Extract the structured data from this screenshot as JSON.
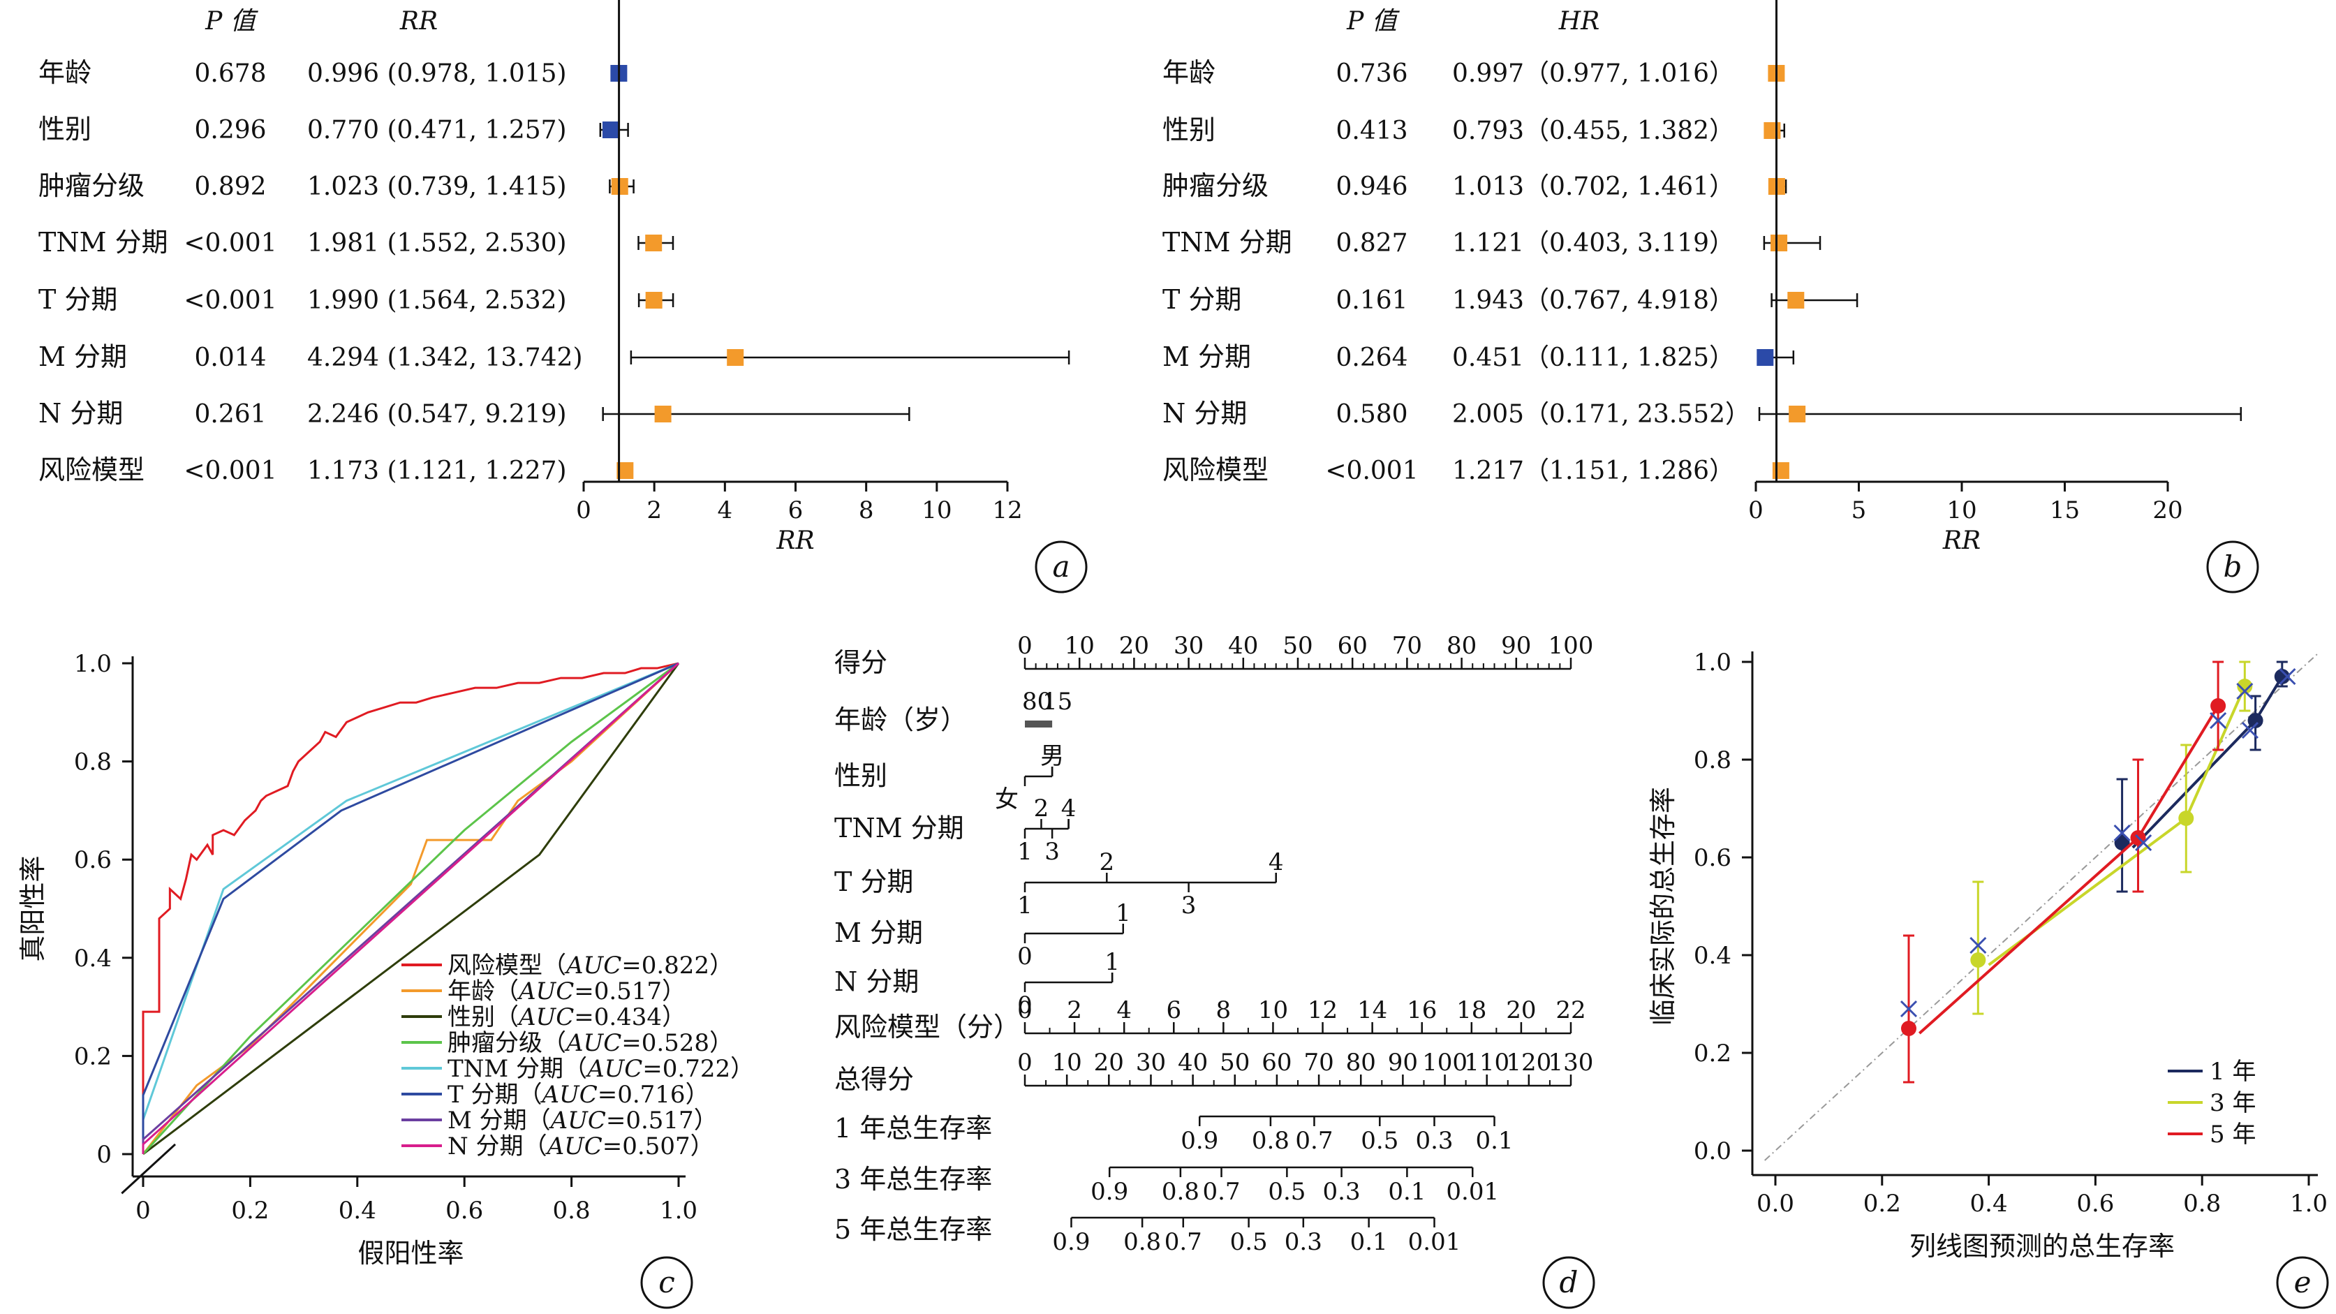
{
  "colors": {
    "blue": "#2b4aa8",
    "orange": "#f39a2b",
    "red": "#e01b22",
    "yellow": "#c8d62a",
    "navy": "#1c2a5e",
    "grey": "#555555"
  },
  "chart_data": [
    {
      "id": "a",
      "type": "forest",
      "panel_label": "a",
      "col_p": "P 值",
      "col_est": "RR",
      "xlabel": "RR",
      "xlim": [
        0,
        12
      ],
      "xticks": [
        "0",
        "2",
        "4",
        "6",
        "8",
        "10",
        "12"
      ],
      "rows": [
        {
          "label": "年龄",
          "p": "0.678",
          "est_text": "0.996 (0.978, 1.015)",
          "est": 0.996,
          "lo": 0.978,
          "hi": 1.015,
          "color": "blue"
        },
        {
          "label": "性别",
          "p": "0.296",
          "est_text": "0.770 (0.471, 1.257)",
          "est": 0.77,
          "lo": 0.471,
          "hi": 1.257,
          "color": "blue"
        },
        {
          "label": "肿瘤分级",
          "p": "0.892",
          "est_text": "1.023 (0.739, 1.415)",
          "est": 1.023,
          "lo": 0.739,
          "hi": 1.415,
          "color": "orange"
        },
        {
          "label": "TNM 分期",
          "p": "<0.001",
          "est_text": "1.981 (1.552, 2.530)",
          "est": 1.981,
          "lo": 1.552,
          "hi": 2.53,
          "color": "orange"
        },
        {
          "label": "T 分期",
          "p": "<0.001",
          "est_text": "1.990 (1.564, 2.532)",
          "est": 1.99,
          "lo": 1.564,
          "hi": 2.532,
          "color": "orange"
        },
        {
          "label": "M 分期",
          "p": "0.014",
          "est_text": "4.294 (1.342, 13.742)",
          "est": 4.294,
          "lo": 1.342,
          "hi": 13.742,
          "color": "orange"
        },
        {
          "label": "N 分期",
          "p": "0.261",
          "est_text": "2.246 (0.547, 9.219)",
          "est": 2.246,
          "lo": 0.547,
          "hi": 9.219,
          "color": "orange"
        },
        {
          "label": "风险模型",
          "p": "<0.001",
          "est_text": "1.173 (1.121, 1.227)",
          "est": 1.173,
          "lo": 1.121,
          "hi": 1.227,
          "color": "orange"
        }
      ]
    },
    {
      "id": "b",
      "type": "forest",
      "panel_label": "b",
      "col_p": "P 值",
      "col_est": "HR",
      "xlabel": "RR",
      "xlim": [
        0,
        20
      ],
      "xticks": [
        "0",
        "5",
        "10",
        "15",
        "20"
      ],
      "rows": [
        {
          "label": "年龄",
          "p": "0.736",
          "est_text": "0.997（0.977, 1.016）",
          "est": 0.997,
          "lo": 0.977,
          "hi": 1.016,
          "color": "orange"
        },
        {
          "label": "性别",
          "p": "0.413",
          "est_text": "0.793（0.455, 1.382）",
          "est": 0.793,
          "lo": 0.455,
          "hi": 1.382,
          "color": "orange"
        },
        {
          "label": "肿瘤分级",
          "p": "0.946",
          "est_text": "1.013（0.702, 1.461）",
          "est": 1.013,
          "lo": 0.702,
          "hi": 1.461,
          "color": "orange"
        },
        {
          "label": "TNM 分期",
          "p": "0.827",
          "est_text": "1.121（0.403, 3.119）",
          "est": 1.121,
          "lo": 0.403,
          "hi": 3.119,
          "color": "orange"
        },
        {
          "label": "T 分期",
          "p": "0.161",
          "est_text": "1.943（0.767, 4.918）",
          "est": 1.943,
          "lo": 0.767,
          "hi": 4.918,
          "color": "orange"
        },
        {
          "label": "M 分期",
          "p": "0.264",
          "est_text": "0.451（0.111, 1.825）",
          "est": 0.451,
          "lo": 0.111,
          "hi": 1.825,
          "color": "blue"
        },
        {
          "label": "N 分期",
          "p": "0.580",
          "est_text": "2.005（0.171, 23.552）",
          "est": 2.005,
          "lo": 0.171,
          "hi": 23.552,
          "color": "orange"
        },
        {
          "label": "风险模型",
          "p": "<0.001",
          "est_text": "1.217（1.151, 1.286）",
          "est": 1.217,
          "lo": 1.151,
          "hi": 1.286,
          "color": "orange"
        }
      ]
    },
    {
      "id": "c",
      "type": "line",
      "panel_label": "c",
      "xlabel": "假阳性率",
      "ylabel": "真阳性率",
      "xlim": [
        0,
        1
      ],
      "ylim": [
        0,
        1
      ],
      "xticks": [
        "0",
        "0.2",
        "0.4",
        "0.6",
        "0.8",
        "1.0"
      ],
      "yticks": [
        "0",
        "0.2",
        "0.4",
        "0.6",
        "0.8",
        "1.0"
      ],
      "series": [
        {
          "name": "风险模型",
          "auc": "=0.822",
          "color": "#e01b22",
          "points": [
            [
              0,
              0
            ],
            [
              0,
              0.1
            ],
            [
              0,
              0.29
            ],
            [
              0.03,
              0.29
            ],
            [
              0.03,
              0.48
            ],
            [
              0.05,
              0.5
            ],
            [
              0.05,
              0.54
            ],
            [
              0.07,
              0.52
            ],
            [
              0.08,
              0.56
            ],
            [
              0.09,
              0.61
            ],
            [
              0.1,
              0.6
            ],
            [
              0.12,
              0.63
            ],
            [
              0.13,
              0.61
            ],
            [
              0.13,
              0.65
            ],
            [
              0.15,
              0.66
            ],
            [
              0.17,
              0.65
            ],
            [
              0.19,
              0.68
            ],
            [
              0.2,
              0.69
            ],
            [
              0.21,
              0.7
            ],
            [
              0.22,
              0.72
            ],
            [
              0.23,
              0.73
            ],
            [
              0.25,
              0.74
            ],
            [
              0.27,
              0.75
            ],
            [
              0.28,
              0.78
            ],
            [
              0.29,
              0.8
            ],
            [
              0.31,
              0.82
            ],
            [
              0.33,
              0.84
            ],
            [
              0.34,
              0.86
            ],
            [
              0.36,
              0.85
            ],
            [
              0.38,
              0.88
            ],
            [
              0.4,
              0.89
            ],
            [
              0.42,
              0.9
            ],
            [
              0.45,
              0.91
            ],
            [
              0.48,
              0.92
            ],
            [
              0.51,
              0.92
            ],
            [
              0.54,
              0.93
            ],
            [
              0.58,
              0.94
            ],
            [
              0.62,
              0.95
            ],
            [
              0.66,
              0.95
            ],
            [
              0.7,
              0.96
            ],
            [
              0.74,
              0.96
            ],
            [
              0.78,
              0.97
            ],
            [
              0.82,
              0.97
            ],
            [
              0.86,
              0.98
            ],
            [
              0.9,
              0.98
            ],
            [
              0.93,
              0.99
            ],
            [
              0.96,
              0.99
            ],
            [
              1,
              1
            ]
          ]
        },
        {
          "name": "年龄",
          "auc": "=0.517",
          "color": "#f39a2b",
          "points": [
            [
              0,
              0
            ],
            [
              0.1,
              0.14
            ],
            [
              0.2,
              0.22
            ],
            [
              0.3,
              0.33
            ],
            [
              0.4,
              0.44
            ],
            [
              0.5,
              0.55
            ],
            [
              0.53,
              0.64
            ],
            [
              0.65,
              0.64
            ],
            [
              0.7,
              0.72
            ],
            [
              0.8,
              0.8
            ],
            [
              0.9,
              0.9
            ],
            [
              1,
              1
            ]
          ]
        },
        {
          "name": "性别",
          "auc": "=0.434",
          "color": "#2e3d0a",
          "points": [
            [
              0,
              0
            ],
            [
              0.74,
              0.61
            ],
            [
              1,
              1
            ]
          ]
        },
        {
          "name": "肿瘤分级",
          "auc": "=0.528",
          "color": "#5cc44a",
          "points": [
            [
              0,
              0
            ],
            [
              0.2,
              0.24
            ],
            [
              0.4,
              0.45
            ],
            [
              0.6,
              0.66
            ],
            [
              0.8,
              0.84
            ],
            [
              1,
              1
            ]
          ]
        },
        {
          "name": "TNM 分期",
          "auc": "=0.722",
          "color": "#5fc8d8",
          "points": [
            [
              0,
              0
            ],
            [
              0,
              0.07
            ],
            [
              0.15,
              0.54
            ],
            [
              0.38,
              0.72
            ],
            [
              1,
              1
            ]
          ]
        },
        {
          "name": "T 分期",
          "auc": "=0.716",
          "color": "#2e4aa0",
          "points": [
            [
              0,
              0
            ],
            [
              0,
              0.12
            ],
            [
              0.15,
              0.52
            ],
            [
              0.37,
              0.7
            ],
            [
              1,
              1
            ]
          ]
        },
        {
          "name": "M 分期",
          "auc": "=0.517",
          "color": "#6b3fa0",
          "points": [
            [
              0,
              0
            ],
            [
              0,
              0.03
            ],
            [
              1,
              1
            ]
          ]
        },
        {
          "name": "N 分期",
          "auc": "=0.507",
          "color": "#d81e8c",
          "points": [
            [
              0,
              0
            ],
            [
              0,
              0.02
            ],
            [
              1,
              1
            ]
          ]
        }
      ]
    },
    {
      "id": "d",
      "type": "nomogram",
      "panel_label": "d",
      "rows": [
        {
          "label": "得分",
          "kind": "axis",
          "domain": [
            0,
            100
          ],
          "ticks": [
            "0",
            "10",
            "20",
            "30",
            "40",
            "50",
            "60",
            "70",
            "80",
            "90",
            "100"
          ],
          "minor": true
        },
        {
          "label": "年龄（岁）",
          "kind": "age",
          "top": [
            "80",
            "15"
          ]
        },
        {
          "label": "性别",
          "kind": "cat",
          "top": [
            {
              "t": "男",
              "v": 5
            }
          ],
          "bottom": [
            {
              "t": "女",
              "v": 0
            }
          ],
          "end": 5
        },
        {
          "label": "TNM 分期",
          "kind": "cat",
          "top": [
            {
              "t": "2",
              "v": 3
            },
            {
              "t": "4",
              "v": 8
            }
          ],
          "bottom": [
            {
              "t": "1",
              "v": 0
            },
            {
              "t": "3",
              "v": 5
            }
          ],
          "end": 8
        },
        {
          "label": "T 分期",
          "kind": "cat",
          "top": [
            {
              "t": "2",
              "v": 15
            },
            {
              "t": "4",
              "v": 46
            }
          ],
          "bottom": [
            {
              "t": "1",
              "v": 0
            },
            {
              "t": "3",
              "v": 30
            }
          ],
          "end": 46
        },
        {
          "label": "M 分期",
          "kind": "cat",
          "top": [
            {
              "t": "1",
              "v": 18
            }
          ],
          "bottom": [
            {
              "t": "0",
              "v": 0
            }
          ],
          "end": 18
        },
        {
          "label": "N 分期",
          "kind": "cat",
          "top": [
            {
              "t": "1",
              "v": 16
            }
          ],
          "bottom": [
            {
              "t": "0",
              "v": 0
            }
          ],
          "end": 16
        },
        {
          "label": "风险模型（分）",
          "kind": "axis",
          "domain": [
            0,
            22
          ],
          "ticks": [
            "0",
            "2",
            "4",
            "6",
            "8",
            "10",
            "12",
            "14",
            "16",
            "18",
            "20",
            "22"
          ],
          "minor": true
        },
        {
          "label": "总得分",
          "kind": "axis",
          "domain": [
            0,
            130
          ],
          "ticks": [
            "0",
            "10",
            "20",
            "30",
            "40",
            "50",
            "60",
            "70",
            "80",
            "90",
            "100",
            "110",
            "120",
            "130"
          ],
          "minor": true
        },
        {
          "label": "1 年总生存率",
          "kind": "surv",
          "ticks": [
            {
              "t": "0.9",
              "p": 0.32
            },
            {
              "t": "0.8",
              "p": 0.45
            },
            {
              "t": "0.7",
              "p": 0.53
            },
            {
              "t": "0.5",
              "p": 0.65
            },
            {
              "t": "0.3",
              "p": 0.75
            },
            {
              "t": "0.1",
              "p": 0.86
            }
          ],
          "start": 0.32,
          "end": 0.86
        },
        {
          "label": "3 年总生存率",
          "kind": "surv",
          "ticks": [
            {
              "t": "0.9",
              "p": 0.155
            },
            {
              "t": "0.8",
              "p": 0.285
            },
            {
              "t": "0.7",
              "p": 0.36
            },
            {
              "t": "0.5",
              "p": 0.48
            },
            {
              "t": "0.3",
              "p": 0.58
            },
            {
              "t": "0.1",
              "p": 0.7
            },
            {
              "t": "0.01",
              "p": 0.82
            }
          ],
          "start": 0.155,
          "end": 0.82
        },
        {
          "label": "5 年总生存率",
          "kind": "surv",
          "ticks": [
            {
              "t": "0.9",
              "p": 0.085
            },
            {
              "t": "0.8",
              "p": 0.215
            },
            {
              "t": "0.7",
              "p": 0.29
            },
            {
              "t": "0.5",
              "p": 0.41
            },
            {
              "t": "0.3",
              "p": 0.51
            },
            {
              "t": "0.1",
              "p": 0.63
            },
            {
              "t": "0.01",
              "p": 0.75
            }
          ],
          "start": 0.085,
          "end": 0.75
        }
      ]
    },
    {
      "id": "e",
      "type": "scatter",
      "panel_label": "e",
      "xlabel": "列线图预测的总生存率",
      "ylabel": "临床实际的总生存率",
      "xlim": [
        0,
        1
      ],
      "ylim": [
        0,
        1
      ],
      "xticks": [
        "0.0",
        "0.2",
        "0.4",
        "0.6",
        "0.8",
        "1.0"
      ],
      "yticks": [
        "0.0",
        "0.2",
        "0.4",
        "0.6",
        "0.8",
        "1.0"
      ],
      "series": [
        {
          "name": "1 年",
          "color": "#1c2a5e",
          "points": [
            {
              "x": 0.65,
              "y": 0.63,
              "lo": 0.53,
              "hi": 0.76
            },
            {
              "x": 0.9,
              "y": 0.88,
              "lo": 0.82,
              "hi": 0.93
            },
            {
              "x": 0.95,
              "y": 0.97,
              "lo": 0.95,
              "hi": 1.0
            }
          ]
        },
        {
          "name": "3 年",
          "color": "#c8d62a",
          "points": [
            {
              "x": 0.38,
              "y": 0.39,
              "lo": 0.28,
              "hi": 0.55
            },
            {
              "x": 0.77,
              "y": 0.68,
              "lo": 0.57,
              "hi": 0.83
            },
            {
              "x": 0.88,
              "y": 0.95,
              "lo": 0.9,
              "hi": 1.0
            }
          ]
        },
        {
          "name": "5 年",
          "color": "#e01b22",
          "points": [
            {
              "x": 0.25,
              "y": 0.25,
              "lo": 0.14,
              "hi": 0.44
            },
            {
              "x": 0.68,
              "y": 0.64,
              "lo": 0.53,
              "hi": 0.8
            },
            {
              "x": 0.83,
              "y": 0.91,
              "lo": 0.82,
              "hi": 1.0
            }
          ]
        }
      ],
      "crosses": [
        [
          0.25,
          0.29
        ],
        [
          0.38,
          0.42
        ],
        [
          0.65,
          0.65
        ],
        [
          0.69,
          0.63
        ],
        [
          0.83,
          0.88
        ],
        [
          0.88,
          0.94
        ],
        [
          0.89,
          0.86
        ],
        [
          0.96,
          0.97
        ]
      ],
      "legend_position": "bottom-right"
    }
  ]
}
